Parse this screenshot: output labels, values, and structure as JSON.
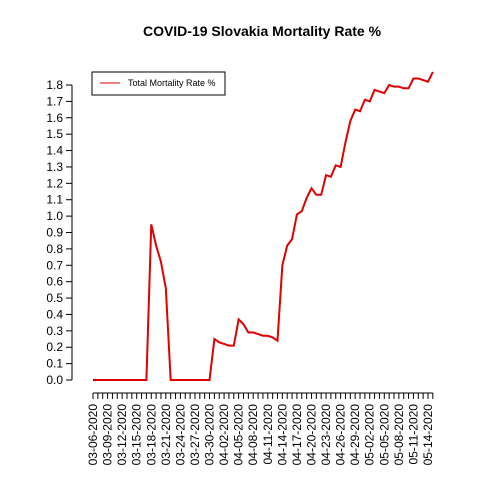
{
  "chart_data": {
    "type": "line",
    "title": "COVID-19 Slovakia Mortality Rate %",
    "categories": [
      "03-06-2020",
      null,
      null,
      "03-09-2020",
      null,
      null,
      "03-12-2020",
      null,
      null,
      "03-15-2020",
      null,
      null,
      "03-18-2020",
      null,
      null,
      "03-21-2020",
      null,
      null,
      "03-24-2020",
      null,
      null,
      "03-27-2020",
      null,
      null,
      "03-30-2020",
      null,
      null,
      "04-02-2020",
      null,
      null,
      "04-05-2020",
      null,
      null,
      "04-08-2020",
      null,
      null,
      "04-11-2020",
      null,
      null,
      "04-14-2020",
      null,
      null,
      "04-17-2020",
      null,
      null,
      "04-20-2020",
      null,
      null,
      "04-23-2020",
      null,
      null,
      "04-26-2020",
      null,
      null,
      "04-29-2020",
      null,
      null,
      "05-02-2020",
      null,
      null,
      "05-05-2020",
      null,
      null,
      "05-08-2020",
      null,
      null,
      "05-11-2020",
      null,
      null,
      "05-14-2020",
      null
    ],
    "series": [
      {
        "name": "Total Mortality Rate %",
        "color": "#e00000",
        "values": [
          0,
          0,
          0,
          0,
          0,
          0,
          0,
          0,
          0,
          0,
          0,
          0,
          0.95,
          0.82,
          0.72,
          0.56,
          0,
          0,
          0,
          0,
          0,
          0,
          0,
          0,
          0,
          0.25,
          0.23,
          0.22,
          0.21,
          0.21,
          0.37,
          0.34,
          0.29,
          0.29,
          0.28,
          0.27,
          0.27,
          0.26,
          0.24,
          0.7,
          0.82,
          0.86,
          1.01,
          1.03,
          1.11,
          1.17,
          1.13,
          1.13,
          1.25,
          1.24,
          1.31,
          1.3,
          1.45,
          1.58,
          1.65,
          1.64,
          1.71,
          1.7,
          1.77,
          1.76,
          1.75,
          1.8,
          1.79,
          1.79,
          1.78,
          1.78,
          1.84,
          1.84,
          1.83,
          1.82,
          1.88
        ]
      }
    ],
    "ylim": [
      0,
      1.8
    ],
    "yticks": [
      {
        "value": 0,
        "label": "0.0"
      },
      0.1,
      0.2,
      0.3,
      0.4,
      0.5,
      0.6,
      0.7,
      0.8,
      0.9,
      {
        "value": 1,
        "label": "1.0"
      },
      1.1,
      1.2,
      1.3,
      1.4,
      1.5,
      1.6,
      1.7,
      1.8
    ],
    "legend": "top-left"
  }
}
